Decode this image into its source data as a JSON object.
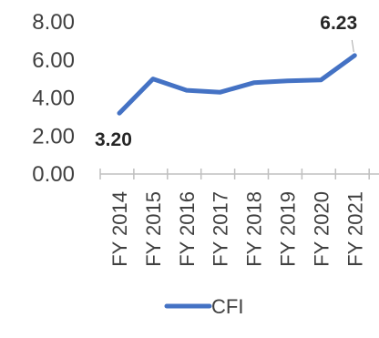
{
  "chart_data": {
    "type": "line",
    "categories": [
      "FY 2014",
      "FY 2015",
      "FY 2016",
      "FY 2017",
      "FY 2018",
      "FY 2019",
      "FY 2020",
      "FY 2021"
    ],
    "series": [
      {
        "name": "CFI",
        "values": [
          3.2,
          5.0,
          4.4,
          4.3,
          4.8,
          4.9,
          4.95,
          6.23
        ],
        "color": "#4472C4"
      }
    ],
    "yticks": [
      "0.00",
      "2.00",
      "4.00",
      "6.00",
      "8.00"
    ],
    "ylim": [
      0,
      8
    ],
    "data_labels": [
      {
        "index": 0,
        "text": "3.20"
      },
      {
        "index": 7,
        "text": "6.23"
      }
    ],
    "grid": false,
    "legend_position": "bottom",
    "title": "",
    "xlabel": "",
    "ylabel": ""
  }
}
